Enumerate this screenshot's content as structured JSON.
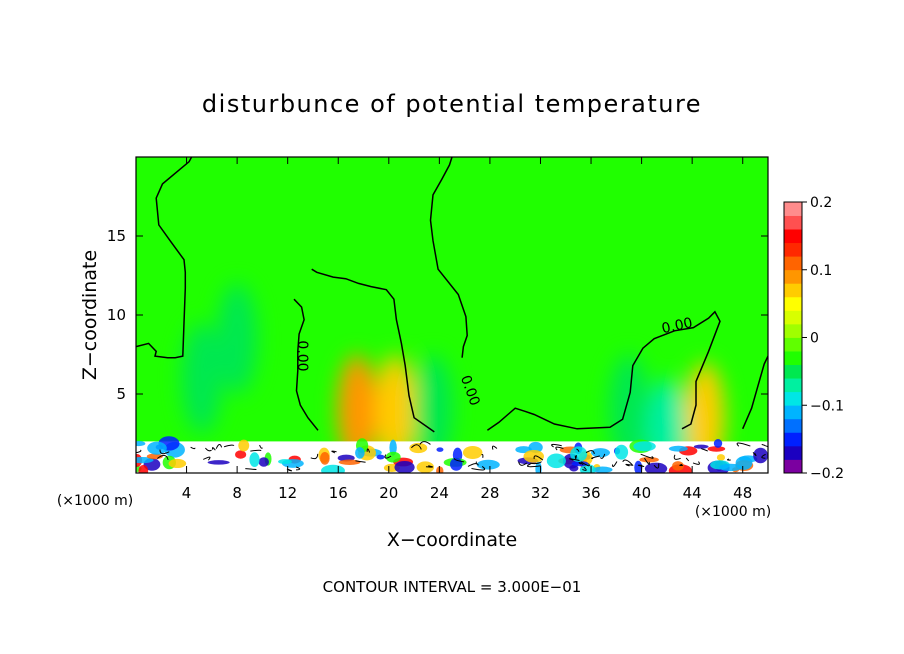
{
  "chart_data": {
    "type": "heatmap",
    "title": "disturbunce of potential temperature",
    "xlabel": "X−coordinate",
    "ylabel": "Z−coordinate",
    "x_unit_left": "(×1000 m)",
    "x_unit_right": "(×1000 m)",
    "footer": "CONTOUR INTERVAL = 3.000E−01",
    "xlim": [
      0,
      50
    ],
    "ylim": [
      0,
      20
    ],
    "x_ticks": [
      4,
      8,
      12,
      16,
      20,
      24,
      28,
      32,
      36,
      40,
      44,
      48
    ],
    "y_ticks": [
      5,
      10,
      15
    ],
    "contour_labels": [
      "0.00",
      "0.00",
      "0.00"
    ],
    "colorbar": {
      "min": -0.2,
      "max": 0.2,
      "ticks": [
        "0.2",
        "0.1",
        "0",
        "−0.1",
        "−0.2"
      ],
      "colors": [
        "#7b00a0",
        "#1b00c0",
        "#0020ff",
        "#0070ff",
        "#00b4ff",
        "#00e6e6",
        "#00f0a0",
        "#00e850",
        "#20ff00",
        "#60ff00",
        "#a0ff00",
        "#d8ff00",
        "#ffff00",
        "#ffcc00",
        "#ff9600",
        "#ff6400",
        "#ff2800",
        "#ff0000",
        "#ff5050",
        "#ff8c8c"
      ]
    },
    "anomalies": [
      {
        "x": 5.2,
        "z": 6.0,
        "value": -0.05
      },
      {
        "x": 8.0,
        "z": 8.5,
        "value": -0.04
      },
      {
        "x": 17.5,
        "z": 4.0,
        "value": 0.09
      },
      {
        "x": 20.5,
        "z": 4.0,
        "value": 0.07
      },
      {
        "x": 23.5,
        "z": 4.0,
        "value": -0.06
      },
      {
        "x": 39.0,
        "z": 4.0,
        "value": -0.06
      },
      {
        "x": 45.0,
        "z": 3.5,
        "value": 0.07
      },
      {
        "x": 42.0,
        "z": 2.5,
        "value": -0.07
      }
    ],
    "zero_contours": [
      [
        [
          0,
          8
        ],
        [
          1,
          8.2
        ],
        [
          1.6,
          7.7
        ],
        [
          1.5,
          7.4
        ],
        [
          2.5,
          7.3
        ],
        [
          3.1,
          7.3
        ],
        [
          3.7,
          7.4
        ],
        [
          3.8,
          9.5
        ],
        [
          3.9,
          11.7
        ],
        [
          3.9,
          12.7
        ],
        [
          3.8,
          13.5
        ],
        [
          2.7,
          14.7
        ],
        [
          1.8,
          15.7
        ],
        [
          1.6,
          17.4
        ],
        [
          2.1,
          18.3
        ],
        [
          3.3,
          19.1
        ],
        [
          4.2,
          19.7
        ],
        [
          4.4,
          20
        ]
      ],
      [
        [
          12.5,
          11
        ],
        [
          13.1,
          10.5
        ],
        [
          13.3,
          9.7
        ],
        [
          12.9,
          8.8
        ],
        [
          12.8,
          7.7
        ],
        [
          12.8,
          6.5
        ],
        [
          12.7,
          5.2
        ],
        [
          13.0,
          4.3
        ],
        [
          13.6,
          3.5
        ],
        [
          14.4,
          2.7
        ]
      ],
      [
        [
          13.9,
          12.9
        ],
        [
          14.3,
          12.7
        ],
        [
          15.6,
          12.4
        ],
        [
          16.6,
          12.3
        ],
        [
          17.6,
          12.0
        ],
        [
          18.6,
          11.8
        ],
        [
          19.8,
          11.6
        ],
        [
          20.4,
          11.0
        ],
        [
          20.6,
          9.7
        ],
        [
          21.0,
          8.2
        ],
        [
          21.3,
          6.8
        ],
        [
          21.6,
          4.9
        ],
        [
          22.0,
          3.5
        ],
        [
          23.6,
          2.6
        ]
      ],
      [
        [
          25.0,
          20
        ],
        [
          24.8,
          19.5
        ],
        [
          24.2,
          18.6
        ],
        [
          23.5,
          17.6
        ],
        [
          23.3,
          16.0
        ],
        [
          23.5,
          14.7
        ],
        [
          23.9,
          12.9
        ],
        [
          25.5,
          11.3
        ],
        [
          26.1,
          9.9
        ],
        [
          26.2,
          8.7
        ],
        [
          25.9,
          8.0
        ],
        [
          25.8,
          7.3
        ]
      ],
      [
        [
          27.8,
          2.7
        ],
        [
          28.7,
          3.2
        ],
        [
          30.0,
          4.1
        ],
        [
          30.8,
          3.9
        ],
        [
          31.5,
          3.7
        ],
        [
          33.1,
          3.1
        ],
        [
          34.9,
          2.8
        ],
        [
          37.5,
          2.9
        ],
        [
          38.5,
          3.4
        ],
        [
          39.1,
          5.1
        ],
        [
          39.3,
          6.8
        ],
        [
          40.1,
          7.9
        ],
        [
          41.0,
          8.5
        ],
        [
          42.6,
          9.0
        ],
        [
          44.1,
          9.2
        ],
        [
          45.3,
          9.8
        ],
        [
          45.8,
          10.2
        ],
        [
          46.2,
          9.6
        ],
        [
          45.3,
          7.7
        ],
        [
          44.3,
          5.8
        ],
        [
          44.3,
          4.3
        ],
        [
          43.9,
          3.1
        ],
        [
          43.2,
          2.8
        ]
      ],
      [
        [
          48.0,
          2.8
        ],
        [
          48.7,
          4.1
        ],
        [
          49.2,
          5.5
        ],
        [
          49.7,
          6.9
        ],
        [
          50,
          7.4
        ]
      ]
    ]
  }
}
